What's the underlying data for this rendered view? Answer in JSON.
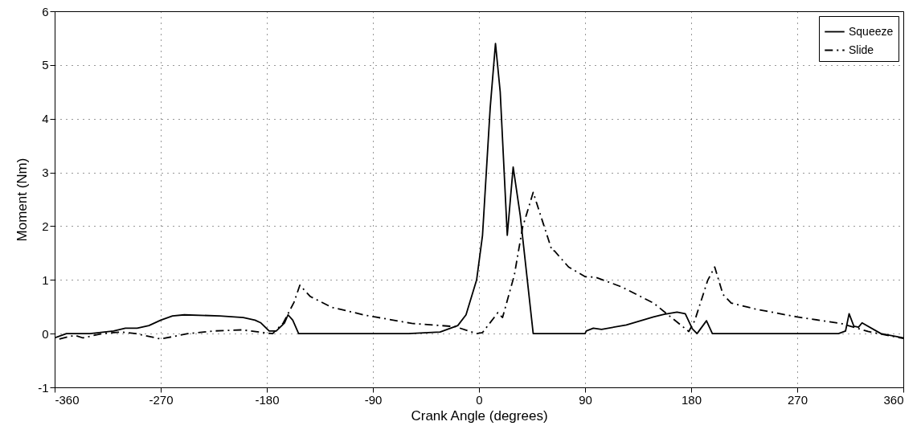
{
  "chart_data": {
    "type": "line",
    "xlabel": "Crank Angle (degrees)",
    "ylabel": "Moment (Nm)",
    "xlim": [
      -360,
      360
    ],
    "xticks": [
      -360,
      -270,
      -180,
      -90,
      0,
      90,
      180,
      270,
      360
    ],
    "ylim": [
      -1,
      6
    ],
    "yticks": [
      -1,
      0,
      1,
      2,
      3,
      4,
      5,
      6
    ],
    "grid": true,
    "legend": "top right",
    "series": [
      {
        "name": "Squeeze",
        "color": "#000000",
        "line_style": "solid",
        "x": [
          -360,
          -350,
          -330,
          -310,
          -300,
          -290,
          -280,
          -270,
          -260,
          -250,
          -220,
          -200,
          -190,
          -185,
          -178,
          -172,
          -165,
          -162,
          -158,
          -153,
          -60,
          -33,
          -18,
          -11,
          -2,
          3,
          9.5,
          14,
          18,
          24,
          29,
          35,
          46,
          90,
          91,
          97,
          104,
          125,
          148,
          157,
          168,
          175,
          181,
          185,
          193,
          198,
          305,
          311,
          314,
          318,
          322,
          325,
          341,
          360
        ],
        "values": [
          -0.08,
          0,
          0,
          0.05,
          0.1,
          0.1,
          0.15,
          0.25,
          0.33,
          0.35,
          0.33,
          0.3,
          0.25,
          0.2,
          0.05,
          0.05,
          0.2,
          0.35,
          0.25,
          0,
          0,
          0.03,
          0.15,
          0.35,
          1.0,
          1.83,
          4.2,
          5.4,
          4.5,
          1.83,
          3.1,
          2.2,
          0,
          0,
          0.05,
          0.1,
          0.08,
          0.16,
          0.31,
          0.36,
          0.4,
          0.37,
          0.09,
          0,
          0.24,
          0,
          0,
          0.05,
          0.37,
          0.14,
          0.12,
          0.2,
          0,
          -0.08
        ]
      },
      {
        "name": "Slide",
        "color": "#000000",
        "line_style": "dashdot",
        "x": [
          -356,
          -343,
          -336,
          -320,
          -304,
          -291,
          -270,
          -247,
          -224,
          -201,
          -183,
          -175,
          -166,
          -157,
          -152,
          -143,
          -125,
          -96,
          -88,
          -57,
          -20,
          -2,
          3,
          16,
          20,
          30,
          37,
          46,
          52,
          57,
          62,
          64,
          76,
          90,
          99,
          121,
          148,
          178,
          183,
          194,
          200,
          207,
          214,
          234,
          270,
          307,
          330,
          360
        ],
        "values": [
          -0.1,
          -0.03,
          -0.08,
          0,
          0.03,
          0,
          -0.1,
          0,
          0.05,
          0.07,
          0.02,
          0,
          0.2,
          0.58,
          0.9,
          0.69,
          0.49,
          0.34,
          0.31,
          0.19,
          0.13,
          0,
          0.02,
          0.39,
          0.3,
          1.09,
          1.98,
          2.63,
          2.22,
          1.88,
          1.54,
          1.54,
          1.24,
          1.06,
          1.05,
          0.87,
          0.57,
          0.04,
          0.24,
          0.99,
          1.24,
          0.73,
          0.57,
          0.46,
          0.31,
          0.19,
          0.04,
          -0.09
        ]
      }
    ]
  }
}
